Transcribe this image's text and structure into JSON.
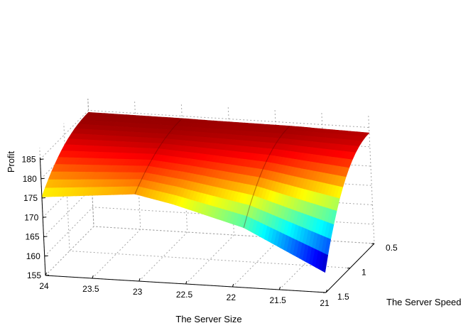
{
  "chart_data": {
    "type": "surface",
    "title": "",
    "xlabel": "The Server Size",
    "ylabel": "The Server Speed",
    "zlabel": "Profit",
    "x_ticks": [
      24,
      23.5,
      23,
      22.5,
      22,
      21.5,
      21
    ],
    "y_ticks": [
      0.5,
      1,
      1.5
    ],
    "z_ticks": [
      155,
      160,
      165,
      170,
      175,
      180,
      185
    ],
    "xlim": [
      21,
      24
    ],
    "ylim": [
      0.5,
      1.5
    ],
    "zlim": [
      155,
      185
    ],
    "grid": true,
    "colormap": "jet",
    "surface_edges": [
      {
        "name": "back",
        "y": 0.5,
        "points": [
          [
            24,
            184.5
          ],
          [
            23,
            184.4
          ],
          [
            22.75,
            184.3
          ],
          [
            21.75,
            184.1
          ],
          [
            21.5,
            183.9
          ],
          [
            21,
            183.6
          ]
        ]
      },
      {
        "name": "front",
        "y": 1.5,
        "points": [
          [
            24,
            175.3
          ],
          [
            23,
            177.5
          ],
          [
            22.6,
            175.5
          ],
          [
            21.85,
            170.5
          ],
          [
            21,
            160.2
          ]
        ]
      }
    ],
    "ridges": [
      {
        "x": 23.0,
        "z_front": 177.5
      },
      {
        "x": 21.85,
        "z_front": 170.5
      }
    ]
  }
}
